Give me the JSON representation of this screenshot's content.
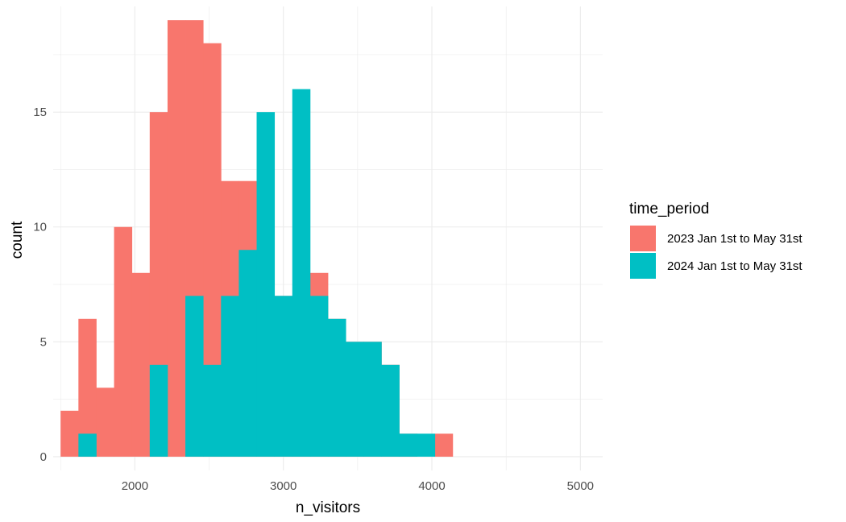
{
  "chart_data": {
    "type": "bar",
    "subtype": "histogram",
    "xlabel": "n_visitors",
    "ylabel": "count",
    "xlim": [
      1450,
      5150
    ],
    "ylim": [
      -0.6,
      19.6
    ],
    "bin_width": 120,
    "x_ticks": [
      2000,
      3000,
      4000,
      5000
    ],
    "x_tick_labels": [
      "2000",
      "3000",
      "4000",
      "5000"
    ],
    "y_ticks": [
      0,
      5,
      10,
      15
    ],
    "y_tick_labels": [
      "0",
      "5",
      "10",
      "15"
    ],
    "grid": true,
    "legend_position": "right",
    "legend_title": "time_period",
    "bin_edges": [
      1500,
      1620,
      1740,
      1860,
      1980,
      2100,
      2220,
      2340,
      2460,
      2580,
      2700,
      2820,
      2940,
      3060,
      3180,
      3300,
      3420,
      3540,
      3660,
      3780,
      3900,
      4020,
      4140
    ],
    "series": [
      {
        "name": "2023 Jan 1st to May 31st",
        "color": "#F8766D",
        "values": [
          2,
          6,
          3,
          10,
          8,
          15,
          19,
          19,
          18,
          12,
          12,
          7,
          7,
          7,
          8,
          6,
          5,
          5,
          4,
          1,
          0,
          1
        ]
      },
      {
        "name": "2024 Jan 1st to May 31st",
        "color": "#00BFC4",
        "values": [
          0,
          1,
          0,
          0,
          0,
          4,
          0,
          7,
          4,
          7,
          9,
          15,
          7,
          16,
          7,
          6,
          5,
          5,
          4,
          1,
          1,
          0
        ]
      }
    ]
  }
}
